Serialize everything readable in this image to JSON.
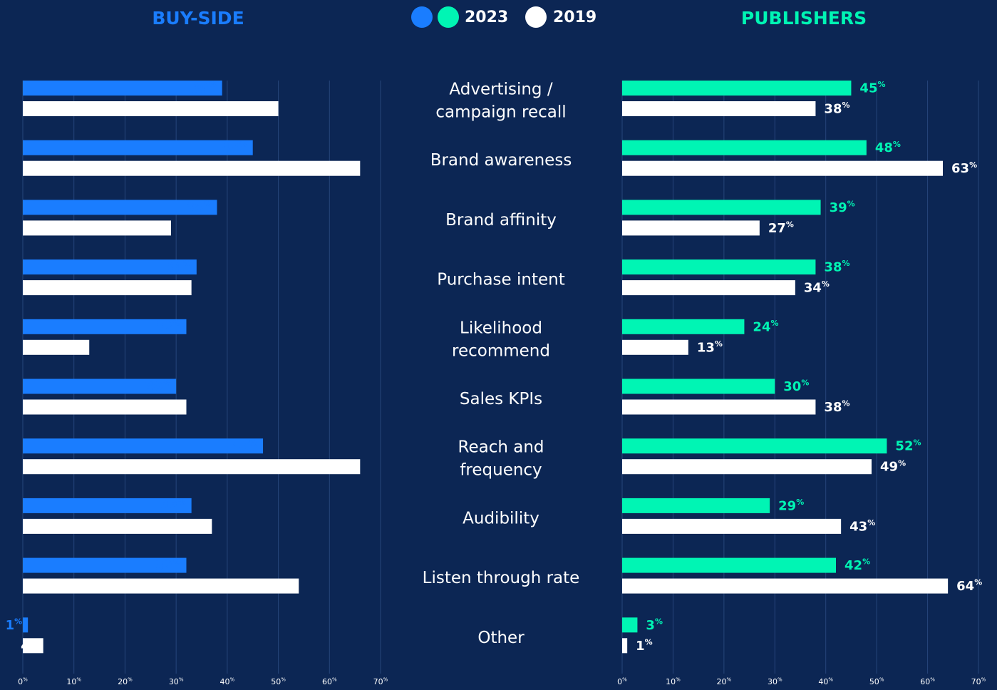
{
  "chart_data": [
    {
      "type": "hbar",
      "title": "BUY-SIDE",
      "title_color": "#1a7dff",
      "xreverse": true,
      "categories": [
        [
          "Advertising /",
          "campaign recall"
        ],
        [
          "Brand awareness"
        ],
        [
          "Brand affinity"
        ],
        [
          "Purchase intent"
        ],
        [
          "Likelihood",
          "recommend"
        ],
        [
          "Sales KPIs"
        ],
        [
          "Reach and",
          "frequency"
        ],
        [
          "Audibility"
        ],
        [
          "Listen through rate"
        ],
        [
          "Other"
        ]
      ],
      "series": [
        {
          "name": "2023",
          "color": "#1a7dff",
          "values": [
            39,
            45,
            38,
            34,
            32,
            30,
            47,
            33,
            32,
            1
          ],
          "value_labels": [
            "39%",
            "45%",
            "38%",
            "34%",
            "32%",
            "30%",
            "47%",
            "33%",
            "32%",
            "1%"
          ]
        },
        {
          "name": "2019",
          "color": "#ffffff",
          "values": [
            50,
            66,
            29,
            33,
            13,
            32,
            66,
            37,
            54,
            4
          ],
          "value_labels": [
            "50%",
            "66%",
            "29%",
            "33%",
            "13%",
            "32%",
            "66%",
            "37%",
            "54%",
            "4%"
          ]
        }
      ],
      "xlim": [
        0,
        70
      ],
      "xticks": [
        {
          "value": 0,
          "label": "0%"
        },
        {
          "value": 10,
          "label": "10%"
        },
        {
          "value": 20,
          "label": "20%"
        },
        {
          "value": 30,
          "label": "30%"
        },
        {
          "value": 40,
          "label": "40%"
        },
        {
          "value": 50,
          "label": "50%"
        },
        {
          "value": 60,
          "label": "60%"
        },
        {
          "value": 70,
          "label": "70%"
        }
      ],
      "grid": true
    },
    {
      "type": "hbar",
      "title": "PUBLISHERS",
      "title_color": "#00f5b4",
      "xreverse": false,
      "series": [
        {
          "name": "2023",
          "color": "#00f5b4",
          "values": [
            45,
            48,
            39,
            38,
            24,
            30,
            52,
            29,
            42,
            3
          ],
          "value_labels": [
            "45%",
            "48%",
            "39%",
            "38%",
            "24%",
            "30%",
            "52%",
            "29%",
            "42%",
            "3%"
          ]
        },
        {
          "name": "2019",
          "color": "#ffffff",
          "values": [
            38,
            63,
            27,
            34,
            13,
            38,
            49,
            43,
            64,
            1
          ],
          "value_labels": [
            "38%",
            "63%",
            "27%",
            "34%",
            "13%",
            "38%",
            "49%",
            "43%",
            "64%",
            "1%"
          ]
        }
      ],
      "xlim": [
        0,
        70
      ],
      "xticks": [
        {
          "value": 0,
          "label": "0%"
        },
        {
          "value": 10,
          "label": "10%"
        },
        {
          "value": 20,
          "label": "20%"
        },
        {
          "value": 30,
          "label": "30%"
        },
        {
          "value": 40,
          "label": "40%"
        },
        {
          "value": 50,
          "label": "50%"
        },
        {
          "value": 60,
          "label": "60%"
        },
        {
          "value": 70,
          "label": "70%"
        }
      ],
      "grid": true
    }
  ]
}
